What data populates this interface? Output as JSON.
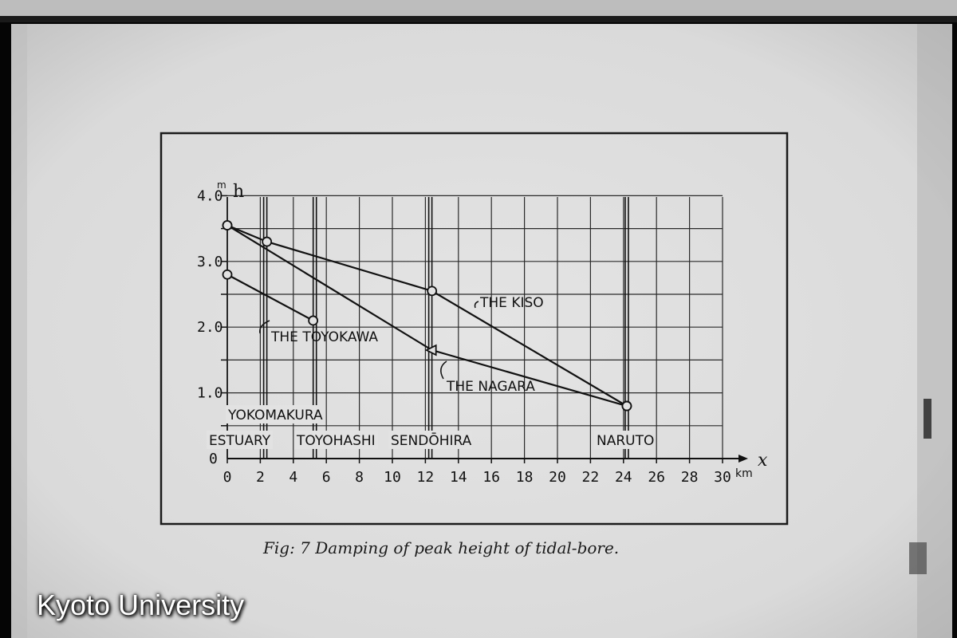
{
  "chart_data": {
    "type": "line",
    "caption": "Fig: 7 Damping of peak height of tidal-bore.",
    "y_axis": {
      "symbol": "h",
      "unit": "m",
      "ylim": [
        0,
        4.0
      ],
      "ticks": [
        {
          "value": 0,
          "label": "0"
        },
        {
          "value": 1.0,
          "label": "1.0"
        },
        {
          "value": 2.0,
          "label": "2.0"
        },
        {
          "value": 3.0,
          "label": "3.0"
        },
        {
          "value": 4.0,
          "label": "4.0"
        }
      ]
    },
    "x_axis": {
      "symbol": "x",
      "unit": "km",
      "xlim": [
        0,
        30
      ],
      "ticks": [
        "0",
        "2",
        "4",
        "6",
        "8",
        "10",
        "12",
        "14",
        "16",
        "18",
        "20",
        "22",
        "24",
        "26",
        "28",
        "30"
      ]
    },
    "grid": true,
    "locations": [
      {
        "name": "ESTUARY",
        "x": 0
      },
      {
        "name": "YOKOMAKURA",
        "x": 2.3
      },
      {
        "name": "TOYOHASHI",
        "x": 5.3
      },
      {
        "name": "SENDŌHIRA",
        "x": 12.3
      },
      {
        "name": "NARUTO",
        "x": 24.2
      }
    ],
    "series": [
      {
        "name": "THE KISO",
        "marker": "circle",
        "points": [
          [
            0,
            3.55
          ],
          [
            2.4,
            3.3
          ],
          [
            12.4,
            2.55
          ],
          [
            24.2,
            0.8
          ]
        ]
      },
      {
        "name": "THE NAGARA",
        "marker": "triangle",
        "points": [
          [
            0,
            3.55
          ],
          [
            12.4,
            1.65
          ],
          [
            24.2,
            0.8
          ]
        ]
      },
      {
        "name": "THE TOYOKAWA",
        "marker": "circle",
        "points": [
          [
            0,
            2.8
          ],
          [
            5.2,
            2.1
          ]
        ]
      }
    ]
  },
  "watermark": "Kyoto University"
}
